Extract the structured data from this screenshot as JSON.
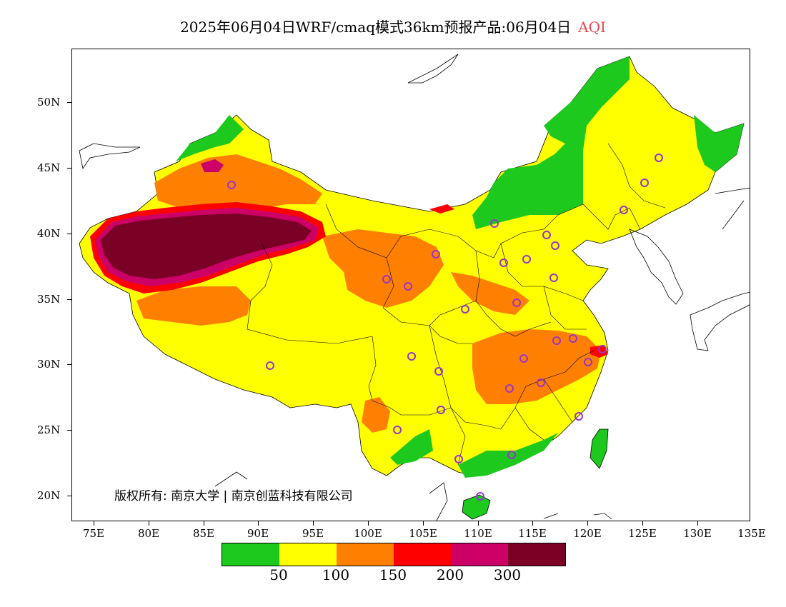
{
  "title": {
    "text": "2025年06月04日WRF/cmaq模式36km预报产品:06月04日",
    "variable": "AQI"
  },
  "map": {
    "latitude_labels": [
      "50N",
      "45N",
      "40N",
      "35N",
      "30N",
      "25N",
      "20N"
    ],
    "longitude_labels": [
      "75E",
      "80E",
      "85E",
      "90E",
      "95E",
      "100E",
      "105E",
      "110E",
      "115E",
      "120E",
      "125E",
      "130E",
      "135E"
    ],
    "copyright": "版权所有: 南京大学 | 南京创蓝科技有限公司",
    "colors": {
      "green": "#1dc91d",
      "yellow": "#ffff00",
      "orange": "#ff8000",
      "red": "#ff0000",
      "magenta": "#cc0066",
      "maroon": "#7a0026",
      "station": "#9933cc"
    }
  },
  "legend": {
    "colors": [
      "#1dc91d",
      "#ffff00",
      "#ff8000",
      "#ff0000",
      "#cc0066",
      "#7a0026"
    ],
    "labels": [
      "50",
      "100",
      "150",
      "200",
      "300"
    ]
  }
}
